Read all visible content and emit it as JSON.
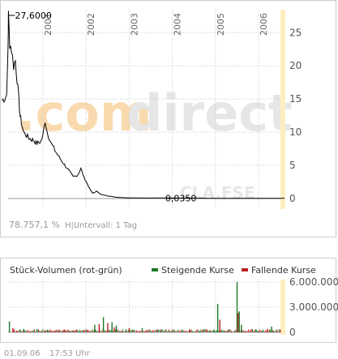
{
  "watermark": {
    "logo_prefix": ".com",
    "logo_suffix": "direct",
    "code": "CLA.FSE"
  },
  "colors": {
    "price_line": "#000000",
    "axis_band": "#fdeec0",
    "grid": "#c8c8c8",
    "frame": "#cccccc",
    "rising": "#1a7a2a",
    "falling": "#bb2222",
    "watermark_orange": "#f7cb8c",
    "watermark_grey": "#e6e6e6"
  },
  "chart_data": [
    {
      "type": "line",
      "x_ticks": [
        "2001",
        "2002",
        "2003",
        "2004",
        "2005",
        "2006"
      ],
      "y_ticks": [
        "0",
        "5",
        "10",
        "15",
        "20",
        "25"
      ],
      "ylim": [
        0,
        27.6
      ],
      "annotations": {
        "max_label": "27,6000",
        "min_label": "0,0350"
      },
      "series": [
        {
          "points": [
            [
              2000.05,
              14.8
            ],
            [
              2000.12,
              15.2
            ],
            [
              2000.15,
              15.5
            ],
            [
              2000.17,
              17.5
            ],
            [
              2000.19,
              23
            ],
            [
              2000.2,
              27.6
            ],
            [
              2000.23,
              23.5
            ],
            [
              2000.27,
              22.5
            ],
            [
              2000.32,
              20
            ],
            [
              2000.36,
              20.8
            ],
            [
              2000.4,
              18
            ],
            [
              2000.44,
              15
            ],
            [
              2000.47,
              12.5
            ],
            [
              2000.5,
              11.5
            ],
            [
              2000.55,
              10
            ],
            [
              2000.62,
              9.5
            ],
            [
              2000.7,
              9
            ],
            [
              2000.78,
              8.8
            ],
            [
              2000.86,
              8.3
            ],
            [
              2000.95,
              8.6
            ],
            [
              2001.0,
              9.5
            ],
            [
              2001.05,
              11.8
            ],
            [
              2001.1,
              10
            ],
            [
              2001.2,
              8.2
            ],
            [
              2001.3,
              7
            ],
            [
              2001.4,
              6
            ],
            [
              2001.5,
              5.1
            ],
            [
              2001.6,
              4.2
            ],
            [
              2001.7,
              3.3
            ],
            [
              2001.8,
              3.5
            ],
            [
              2001.88,
              4.5
            ],
            [
              2001.95,
              3.2
            ],
            [
              2002.0,
              2.6
            ],
            [
              2002.08,
              1.5
            ],
            [
              2002.15,
              0.8
            ],
            [
              2002.25,
              1.1
            ],
            [
              2002.35,
              0.6
            ],
            [
              2002.5,
              0.4
            ],
            [
              2002.7,
              0.2
            ],
            [
              2002.9,
              0.12
            ],
            [
              2003.2,
              0.08
            ],
            [
              2003.6,
              0.08
            ],
            [
              2004.0,
              0.08
            ],
            [
              2004.5,
              0.06
            ],
            [
              2005.0,
              0.04
            ],
            [
              2005.5,
              0.04
            ],
            [
              2006.0,
              0.035
            ],
            [
              2006.6,
              0.04
            ]
          ]
        }
      ]
    },
    {
      "type": "bar",
      "title": "Stück-Volumen (rot-grün)",
      "y_ticks": [
        "0",
        "3.000.000",
        "6.000.000"
      ],
      "ylim": [
        0,
        6000000
      ],
      "series": [
        {
          "name": "Steigende Kurse",
          "values": [
            [
              2000.22,
              1300000
            ],
            [
              2000.55,
              400000
            ],
            [
              2001.1,
              300000
            ],
            [
              2002.2,
              900000
            ],
            [
              2002.4,
              1800000
            ],
            [
              2002.6,
              1200000
            ],
            [
              2002.7,
              800000
            ],
            [
              2003.3,
              500000
            ],
            [
              2005.05,
              3400000
            ],
            [
              2005.5,
              6000000
            ],
            [
              2005.55,
              2500000
            ],
            [
              2005.6,
              900000
            ],
            [
              2006.3,
              700000
            ]
          ]
        },
        {
          "name": "Fallende Kurse",
          "values": [
            [
              2000.3,
              500000
            ],
            [
              2001.5,
              300000
            ],
            [
              2002.3,
              1000000
            ],
            [
              2002.5,
              1100000
            ],
            [
              2002.65,
              600000
            ],
            [
              2003.0,
              500000
            ],
            [
              2004.4,
              300000
            ],
            [
              2005.1,
              1500000
            ],
            [
              2005.52,
              2300000
            ],
            [
              2006.2,
              400000
            ],
            [
              2006.5,
              300000
            ]
          ]
        }
      ]
    }
  ],
  "footer": {
    "left_text": "78.757,1 %",
    "hl_text": "H|L",
    "interval_text": "Intervall: 1 Tag"
  },
  "bottom": {
    "date": "01.09.06",
    "time": "17:53 Uhr"
  }
}
